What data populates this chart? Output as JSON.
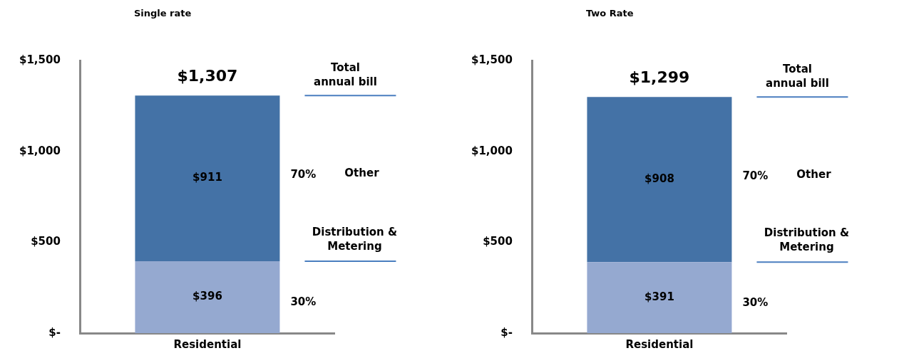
{
  "chart_data": [
    {
      "type": "bar",
      "title": "Single rate",
      "categories": [
        "Residential"
      ],
      "stacked": true,
      "ylim": [
        0,
        1500
      ],
      "yticks": [
        {
          "value": 0,
          "label": "$-"
        },
        {
          "value": 500,
          "label": "$500"
        },
        {
          "value": 1000,
          "label": "$1,000"
        },
        {
          "value": 1500,
          "label": "$1,500"
        }
      ],
      "series": [
        {
          "name": "Distribution & Metering",
          "color": "#95a9d0",
          "values": [
            396
          ],
          "value_labels": [
            "$396"
          ]
        },
        {
          "name": "Other",
          "color": "#4472a6",
          "values": [
            911
          ],
          "value_labels": [
            "$911"
          ]
        }
      ],
      "totals": [
        "$1,307"
      ],
      "annotations": [
        "30%",
        "70%",
        "Total annual bill"
      ],
      "grid": false,
      "legend": false,
      "ref_lines": [
        {
          "axis": "y",
          "value": 1307,
          "color": "#4a7ebf"
        },
        {
          "axis": "y",
          "value": 396,
          "color": "#4a7ebf"
        }
      ]
    },
    {
      "type": "bar",
      "title": "Two Rate",
      "categories": [
        "Residential"
      ],
      "stacked": true,
      "ylim": [
        0,
        1500
      ],
      "yticks": [
        {
          "value": 0,
          "label": "$-"
        },
        {
          "value": 500,
          "label": "$500"
        },
        {
          "value": 1000,
          "label": "$1,000"
        },
        {
          "value": 1500,
          "label": "$1,500"
        }
      ],
      "series": [
        {
          "name": "Distribution & Metering",
          "color": "#95a9d0",
          "values": [
            391
          ],
          "value_labels": [
            "$391"
          ]
        },
        {
          "name": "Other",
          "color": "#4472a6",
          "values": [
            908
          ],
          "value_labels": [
            "$908"
          ]
        }
      ],
      "totals": [
        "$1,299"
      ],
      "annotations": [
        "30%",
        "70%",
        "Total annual bill"
      ],
      "grid": false,
      "legend": false,
      "ref_lines": [
        {
          "axis": "y",
          "value": 1299,
          "color": "#4a7ebf"
        },
        {
          "axis": "y",
          "value": 391,
          "color": "#4a7ebf"
        }
      ]
    }
  ]
}
